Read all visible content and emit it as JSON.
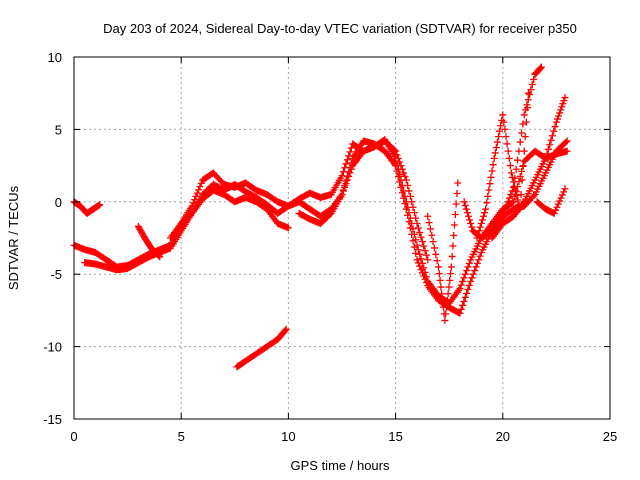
{
  "chart_data": {
    "type": "scatter",
    "title": "Day 203 of 2024, Sidereal Day-to-day VTEC variation (SDTVAR) for receiver p350",
    "xlabel": "GPS time / hours",
    "ylabel": "SDTVAR / TECUs",
    "xlim": [
      0,
      25
    ],
    "ylim": [
      -15,
      10
    ],
    "xticks": [
      "0",
      "5",
      "10",
      "15",
      "20",
      "25"
    ],
    "yticks": [
      "10",
      "5",
      "0",
      "-5",
      "-10",
      "-15"
    ],
    "grid": true,
    "marker": "+",
    "color": "#ff0000",
    "series": [
      {
        "x": [
          0.0,
          0.5,
          1.0,
          1.5,
          2.0,
          2.5,
          3.0,
          3.5,
          4.0,
          4.5,
          5.0,
          5.5,
          6.0,
          6.5,
          7.0,
          7.5,
          8.0,
          8.5,
          9.0,
          9.5,
          10.0,
          10.5,
          11.0,
          11.5,
          12.0,
          12.5,
          13.0,
          13.5,
          14.0,
          14.5,
          15.0,
          15.5,
          16.0,
          16.5,
          17.0,
          17.5,
          18.0,
          18.5,
          19.0,
          19.5,
          20.0,
          20.5,
          21.0,
          21.5,
          22.0,
          22.5,
          23.0
        ],
        "y": [
          -3.0,
          -3.3,
          -3.5,
          -4.0,
          -4.5,
          -4.4,
          -4.0,
          -3.6,
          -3.3,
          -3.0,
          -1.5,
          -0.3,
          1.5,
          2.0,
          1.2,
          1.0,
          1.3,
          0.8,
          0.5,
          0.0,
          -0.3,
          0.2,
          0.6,
          0.3,
          0.5,
          1.8,
          4.0,
          3.5,
          3.8,
          4.3,
          3.0,
          0.0,
          -3.0,
          -5.5,
          -6.5,
          -7.0,
          -6.0,
          -4.0,
          -2.5,
          -1.5,
          -0.5,
          0.0,
          2.8,
          3.5,
          3.0,
          3.3,
          3.5
        ]
      },
      {
        "x": [
          0.5,
          1.0,
          1.5,
          2.0,
          2.5,
          3.0,
          3.5,
          4.0,
          4.5,
          5.0,
          5.5,
          6.0,
          6.5,
          7.0,
          7.5,
          8.0,
          8.5,
          9.0,
          9.5,
          10.0,
          10.5,
          11.0,
          11.5,
          12.0,
          12.5,
          13.0,
          13.5,
          14.0,
          14.5,
          15.0,
          15.5,
          16.0,
          16.5,
          17.0,
          17.5,
          18.0,
          18.5,
          19.0,
          19.5,
          20.0,
          20.5,
          21.0,
          21.5,
          22.0,
          22.5,
          23.0
        ],
        "y": [
          -4.2,
          -4.3,
          -4.5,
          -4.7,
          -4.6,
          -4.2,
          -3.8,
          -3.5,
          -3.2,
          -2.0,
          -0.8,
          0.5,
          1.2,
          0.8,
          1.2,
          0.7,
          0.3,
          -0.2,
          -0.8,
          -0.3,
          0.0,
          -0.5,
          -1.0,
          -0.5,
          0.5,
          3.0,
          4.2,
          4.0,
          3.5,
          2.5,
          -0.5,
          -4.0,
          -5.8,
          -6.8,
          -7.3,
          -7.7,
          -5.5,
          -3.5,
          -2.0,
          -1.0,
          -0.5,
          -0.3,
          0.5,
          2.0,
          3.5,
          4.2
        ]
      },
      {
        "x": [
          0.0,
          0.3,
          0.6,
          0.9,
          1.2
        ],
        "y": [
          0.0,
          -0.3,
          -0.8,
          -0.5,
          -0.2
        ]
      },
      {
        "x": [
          3.0,
          3.3,
          3.6,
          4.0
        ],
        "y": [
          -1.7,
          -2.5,
          -3.2,
          -3.8
        ]
      },
      {
        "x": [
          4.5,
          5.0,
          5.5,
          6.0,
          6.5,
          7.0,
          7.5,
          8.0,
          8.5,
          9.0,
          9.5,
          10.0
        ],
        "y": [
          -2.5,
          -1.5,
          -0.8,
          0.2,
          0.8,
          0.5,
          0.0,
          0.3,
          0.0,
          -0.5,
          -1.5,
          -1.8
        ]
      },
      {
        "x": [
          10.5,
          11.0,
          11.5,
          12.0,
          12.5,
          13.0,
          13.5,
          14.0,
          14.5,
          15.0,
          15.5,
          16.0,
          16.5
        ],
        "y": [
          -0.8,
          -1.2,
          -1.5,
          -0.8,
          0.5,
          2.5,
          3.5,
          3.8,
          4.2,
          3.5,
          1.5,
          -1.5,
          -4.0
        ]
      },
      {
        "x": [
          7.6,
          8.0,
          8.5,
          9.0,
          9.5,
          9.9
        ],
        "y": [
          -11.4,
          -11.0,
          -10.5,
          -10.0,
          -9.5,
          -8.8
        ]
      },
      {
        "x": [
          16.5,
          17.0,
          17.3,
          17.6,
          17.9
        ],
        "y": [
          -1.0,
          -4.5,
          -8.2,
          -4.5,
          1.3
        ]
      },
      {
        "x": [
          18.2,
          18.6,
          19.0,
          19.5,
          20.0,
          20.5,
          21.0,
          21.5,
          21.8
        ],
        "y": [
          0.0,
          -2.0,
          -2.5,
          -2.0,
          -1.0,
          1.0,
          6.0,
          8.8,
          9.3
        ]
      },
      {
        "x": [
          18.8,
          19.2,
          19.6,
          20.0,
          20.4,
          20.8,
          21.2
        ],
        "y": [
          -2.5,
          -0.5,
          3.0,
          6.0,
          2.0,
          -0.5,
          7.5
        ]
      },
      {
        "x": [
          19.5,
          20.0,
          20.5,
          21.0,
          21.5,
          22.0,
          22.5,
          22.9
        ],
        "y": [
          -2.5,
          -1.5,
          -1.0,
          0.0,
          1.5,
          3.0,
          5.5,
          7.2
        ]
      },
      {
        "x": [
          21.6,
          22.0,
          22.4,
          22.9
        ],
        "y": [
          0.0,
          -0.5,
          -0.8,
          0.9
        ]
      }
    ]
  }
}
